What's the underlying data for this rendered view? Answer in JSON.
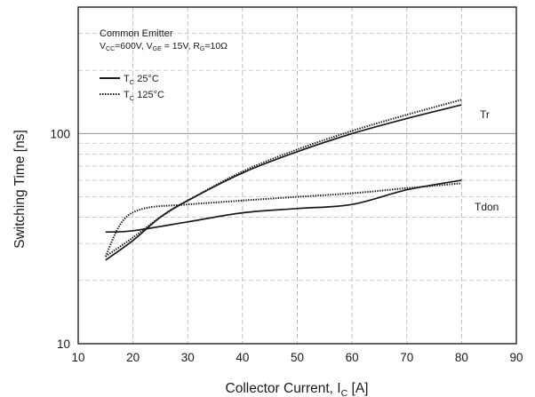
{
  "chart_data": {
    "type": "line",
    "title": "",
    "xlabel": "Collector Current, I",
    "xlabel_sub": "C",
    "xlabel_unit": " [A]",
    "ylabel": "Switching Time [ns]",
    "xlim": [
      10,
      90
    ],
    "ylim": [
      10,
      400
    ],
    "yscale": "log",
    "grid": true,
    "x_ticks": [
      10,
      20,
      30,
      40,
      50,
      60,
      70,
      80,
      90
    ],
    "y_ticks": [
      10,
      100
    ],
    "legend_position": "top-left",
    "legend": {
      "header": "Common Emitter",
      "conditions": {
        "vcc_main": "V",
        "vcc_sub": "CC",
        "vcc_val": "=600V, V",
        "vge_sub": "GE",
        "vge_val": " = 15V, R",
        "rg_sub": "G",
        "rg_val": "=10Ω"
      },
      "entries": [
        {
          "pre": "T",
          "sub": "C",
          "post": " 25°C",
          "style": "solid",
          "color": "#1a1a1a"
        },
        {
          "pre": "T",
          "sub": "C",
          "post": " 125°C",
          "style": "dotted",
          "color": "#1a1a1a"
        }
      ]
    },
    "annotations": [
      "Tr",
      "Tdon"
    ],
    "series": [
      {
        "group": "Tr",
        "temp": "25",
        "style": "solid",
        "x": [
          15,
          20,
          25,
          30,
          40,
          50,
          60,
          70,
          80
        ],
        "y": [
          25,
          31,
          40,
          48,
          65,
          82,
          100,
          118,
          137
        ]
      },
      {
        "group": "Tr",
        "temp": "125",
        "style": "dotted",
        "x": [
          15,
          20,
          25,
          30,
          40,
          50,
          60,
          70,
          80
        ],
        "y": [
          26,
          32,
          40,
          48,
          66,
          84,
          103,
          123,
          145
        ]
      },
      {
        "group": "Tdon",
        "temp": "25",
        "style": "solid",
        "x": [
          15,
          20,
          30,
          40,
          50,
          60,
          70,
          80
        ],
        "y": [
          34,
          34.5,
          38,
          42,
          44,
          46,
          54,
          60
        ]
      },
      {
        "group": "Tdon",
        "temp": "125",
        "style": "dotted",
        "x": [
          15,
          18,
          22,
          30,
          40,
          50,
          60,
          70,
          80
        ],
        "y": [
          26,
          38,
          44,
          46,
          48,
          50,
          52,
          55,
          58
        ]
      }
    ]
  }
}
